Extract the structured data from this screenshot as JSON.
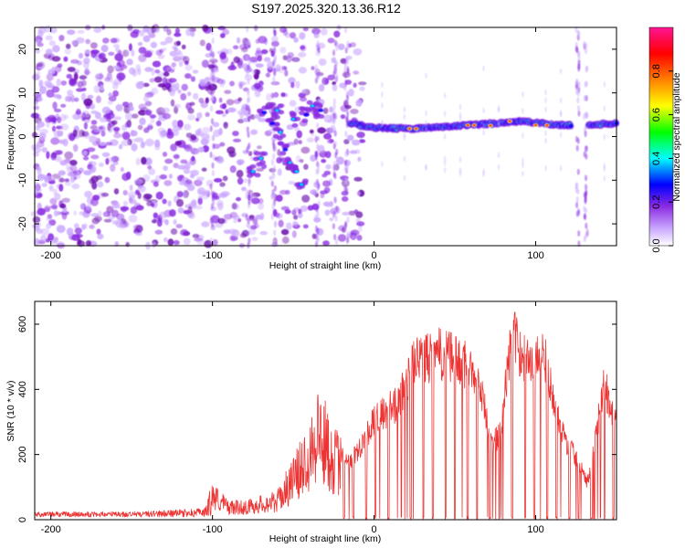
{
  "title": "S197.2025.320.13.36.R12",
  "chart_data": [
    {
      "type": "heatmap",
      "xlabel": "Height of straight line (km)",
      "ylabel": "Frequency (Hz)",
      "xlim": [
        -210,
        150
      ],
      "ylim": [
        -25,
        25
      ],
      "xticks": [
        -200,
        -100,
        0,
        100
      ],
      "yticks": [
        -20,
        -10,
        0,
        10,
        20
      ],
      "colorbar": {
        "label": "Normalized spectral amplitude",
        "range": [
          0,
          1
        ],
        "ticks": [
          "0.0",
          "0.2",
          "0.4",
          "0.6",
          "0.8"
        ],
        "tick_values": [
          0.0,
          0.2,
          0.4,
          0.6,
          0.8
        ],
        "colors": [
          "#ffffff",
          "#c9a6ff",
          "#8a2be2",
          "#0000ff",
          "#00ffff",
          "#00ff00",
          "#ffff00",
          "#ff8000",
          "#ff0000",
          "#ff1493"
        ]
      },
      "features": {
        "noise_region_km": [
          -210,
          -15
        ],
        "signal_line_freq_hz": [
          [
            -15,
            3
          ],
          [
            0,
            2
          ],
          [
            25,
            1.8
          ],
          [
            60,
            2.6
          ],
          [
            90,
            3.5
          ],
          [
            110,
            2.8
          ],
          [
            125,
            2.5
          ],
          [
            150,
            3
          ]
        ],
        "signal_gap_km": [
          122,
          132
        ]
      }
    },
    {
      "type": "line",
      "xlabel": "Height of straight line (km)",
      "ylabel": "SNR (10 * v/v)",
      "xlim": [
        -210,
        150
      ],
      "ylim": [
        0,
        670
      ],
      "xticks": [
        -200,
        -100,
        0,
        100
      ],
      "yticks": [
        0,
        200,
        400,
        600
      ],
      "series": [
        {
          "name": "SNR",
          "color": "#ee3333",
          "envelope": [
            [
              -210,
              25
            ],
            [
              -150,
              25
            ],
            [
              -105,
              35
            ],
            [
              -100,
              120
            ],
            [
              -90,
              60
            ],
            [
              -80,
              60
            ],
            [
              -60,
              90
            ],
            [
              -45,
              250
            ],
            [
              -35,
              430
            ],
            [
              -25,
              300
            ],
            [
              -15,
              200
            ],
            [
              0,
              350
            ],
            [
              15,
              420
            ],
            [
              25,
              560
            ],
            [
              40,
              590
            ],
            [
              55,
              560
            ],
            [
              65,
              520
            ],
            [
              72,
              270
            ],
            [
              78,
              300
            ],
            [
              85,
              660
            ],
            [
              95,
              560
            ],
            [
              105,
              610
            ],
            [
              112,
              380
            ],
            [
              118,
              290
            ],
            [
              125,
              220
            ],
            [
              132,
              130
            ],
            [
              142,
              480
            ],
            [
              150,
              350
            ]
          ]
        }
      ]
    }
  ]
}
